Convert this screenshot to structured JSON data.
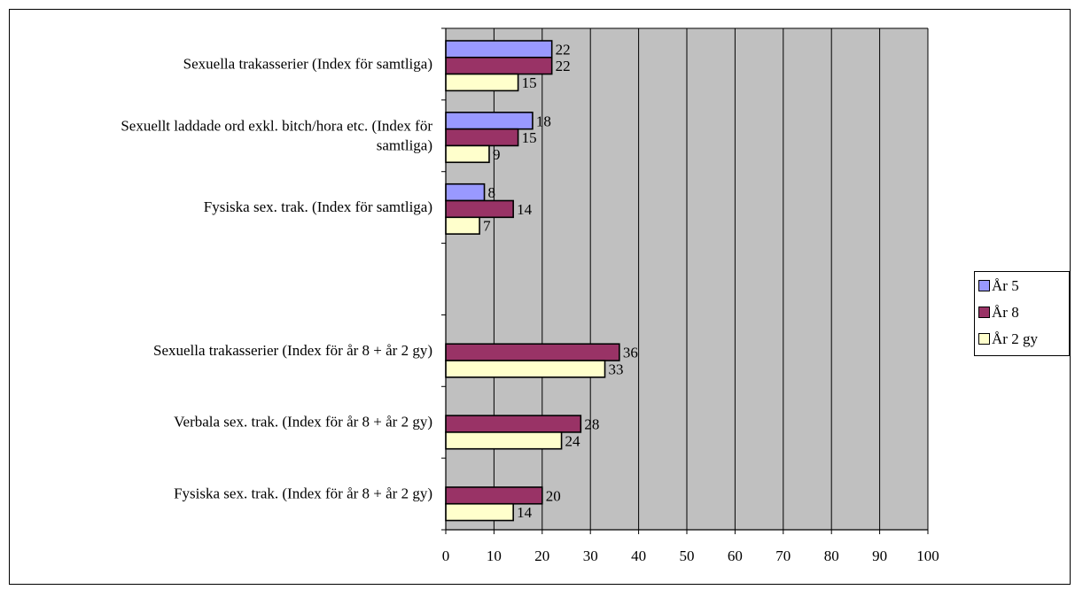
{
  "chart_data": {
    "type": "bar",
    "orientation": "horizontal",
    "title": "",
    "xlabel": "",
    "ylabel": "",
    "xlim": [
      0,
      100
    ],
    "xticks": [
      0,
      10,
      20,
      30,
      40,
      50,
      60,
      70,
      80,
      90,
      100
    ],
    "grid": "vertical",
    "legend_position": "right",
    "categories": [
      "Sexuella trakasserier (Index för samtliga)",
      "Sexuellt laddade ord exkl. bitch/hora etc. (Index för samtliga)",
      "Fysiska sex. trak. (Index för samtliga)",
      "",
      "Sexuella trakasserier (Index för år 8 + år 2 gy)",
      "Verbala sex. trak. (Index för år 8 + år 2 gy)",
      "Fysiska sex. trak. (Index för år 8 + år 2 gy)"
    ],
    "category_lines": [
      [
        "Sexuella trakasserier (Index för samtliga)"
      ],
      [
        "Sexuellt laddade ord exkl. bitch/hora etc. (Index för",
        "samtliga)"
      ],
      [
        "Fysiska sex. trak. (Index för samtliga)"
      ],
      [],
      [
        "Sexuella trakasserier (Index för år 8 + år 2 gy)"
      ],
      [
        "Verbala sex. trak. (Index för år 8 + år 2 gy)"
      ],
      [
        "Fysiska sex. trak. (Index för år 8 + år 2 gy)"
      ]
    ],
    "series": [
      {
        "name": "År 5",
        "color": "#9999ff",
        "values": [
          22,
          18,
          8,
          null,
          null,
          null,
          null
        ]
      },
      {
        "name": "År 8",
        "color": "#993366",
        "values": [
          22,
          15,
          14,
          null,
          36,
          28,
          20
        ]
      },
      {
        "name": "År 2 gy",
        "color": "#ffffcc",
        "values": [
          15,
          9,
          7,
          null,
          33,
          24,
          14
        ]
      }
    ],
    "plot_background": "#c0c0c0"
  }
}
